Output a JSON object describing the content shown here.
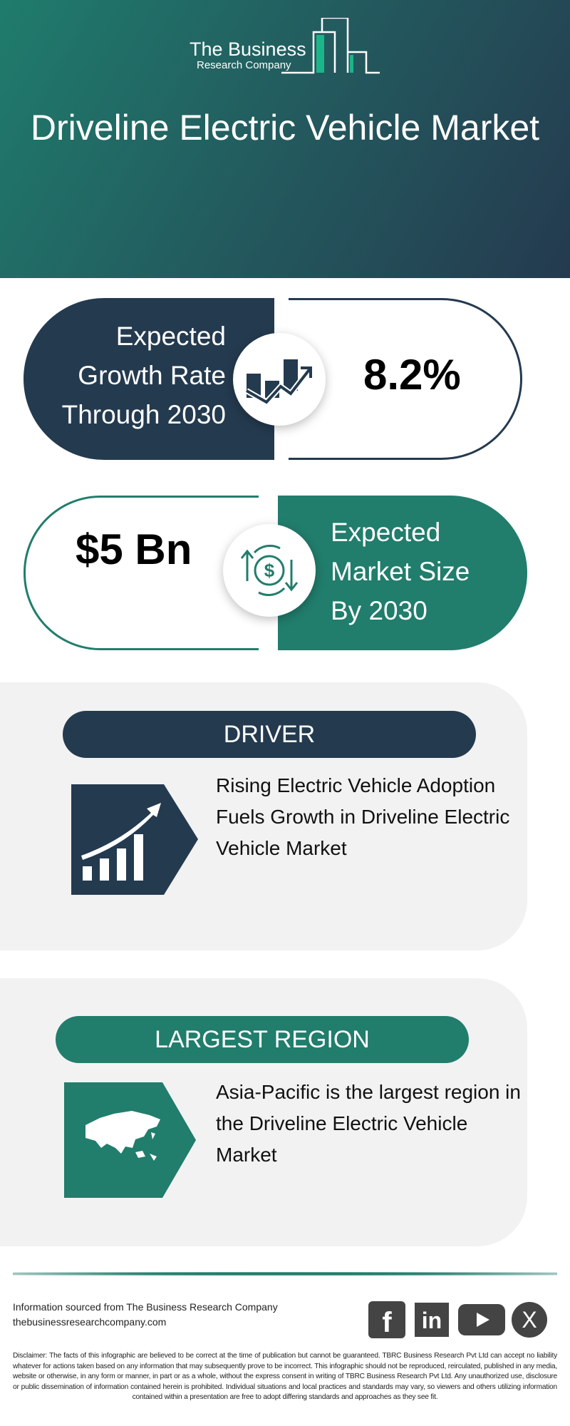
{
  "header": {
    "logo_line1": "The Business",
    "logo_line2": "Research Company",
    "title": "Driveline Electric Vehicle Market"
  },
  "growth": {
    "label": [
      "Expected",
      "Growth Rate",
      "Through 2030"
    ],
    "value": "8.2%",
    "icon": "growth-chart-icon"
  },
  "size": {
    "value": "$5 Bn",
    "label": [
      "Expected",
      "Market Size",
      "By 2030"
    ],
    "icon": "dollar-exchange-icon"
  },
  "driver": {
    "heading": "DRIVER",
    "text": "Rising Electric Vehicle Adoption Fuels Growth in Driveline Electric Vehicle Market",
    "icon": "rising-bar-chart-icon"
  },
  "region": {
    "heading": "LARGEST REGION",
    "text": "Asia-Pacific is the largest region in the Driveline Electric Vehicle Market",
    "icon": "asia-map-icon"
  },
  "footer": {
    "source": "Information sourced from The Business Research Company",
    "website": "thebusinessresearchcompany.com",
    "social": [
      "facebook",
      "linkedin",
      "youtube",
      "x"
    ],
    "disclaimer": "Disclaimer: The facts of this infographic are believed to be correct at the time of publication but cannot be guaranteed. TBRC Business Research Pvt Ltd can accept no liability whatever for actions taken based on any information that may subsequently prove to be incorrect. This infographic should not be reproduced, reirculated, published in any media, website or otherwise, in any form or manner, in part or as a whole, without the express consent in writing of TBRC Business Research Pvt Ltd. Any unauthorized use, disclosure or public dissemination of information contained herein is prohibited. Individual situations and local practices and standards may vary, so viewers and others utilizing information contained within a presentation are free to adopt differing standards and approaches as they see fit."
  },
  "colors": {
    "navy": "#243a4f",
    "teal": "#217d6c",
    "grey": "#f2f2f2"
  }
}
